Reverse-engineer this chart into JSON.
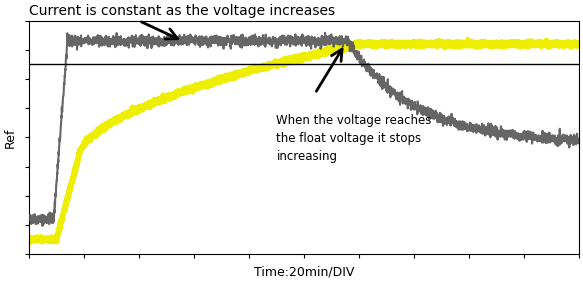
{
  "title": "Current is constant as the voltage increases",
  "xlabel": "Time:20min/DIV",
  "ylabel": "Ref",
  "background_color": "#ffffff",
  "annotation2_text": "When the voltage reaches\nthe float voltage it stops\nincreasing",
  "xlim": [
    0,
    10
  ],
  "ylim": [
    -5,
    3
  ],
  "ref_line_y": 1.5,
  "current_color": "#555555",
  "voltage_color": "#eeee00",
  "ref_color": "#000000"
}
